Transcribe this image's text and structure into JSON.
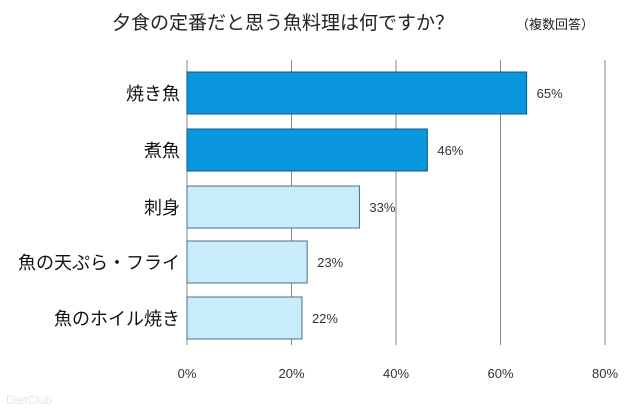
{
  "chart_data": {
    "type": "bar",
    "orientation": "horizontal",
    "title": "夕食の定番だと思う魚料理は何ですか？",
    "subtitle": "（複数回答）",
    "categories": [
      "焼き魚",
      "煮魚",
      "刺身",
      "魚の天ぷら・フライ",
      "魚のホイル焼き"
    ],
    "values": [
      65,
      46,
      33,
      23,
      22
    ],
    "value_labels": [
      "65%",
      "46%",
      "33%",
      "23%",
      "22%"
    ],
    "xlim": [
      0,
      80
    ],
    "xticks": [
      0,
      20,
      40,
      60,
      80
    ],
    "xtick_labels": [
      "0%",
      "20%",
      "40%",
      "60%",
      "80%"
    ],
    "grid": true,
    "legend": "none",
    "colors": {
      "highlight": "#0a97e0",
      "normal": "#c8ecfa",
      "highlight_stroke": "#0a5a8a",
      "normal_stroke": "#4a6f84",
      "grid": "#8a8a8a"
    },
    "highlighted": [
      true,
      true,
      false,
      false,
      false
    ]
  },
  "watermark": "DietClub"
}
